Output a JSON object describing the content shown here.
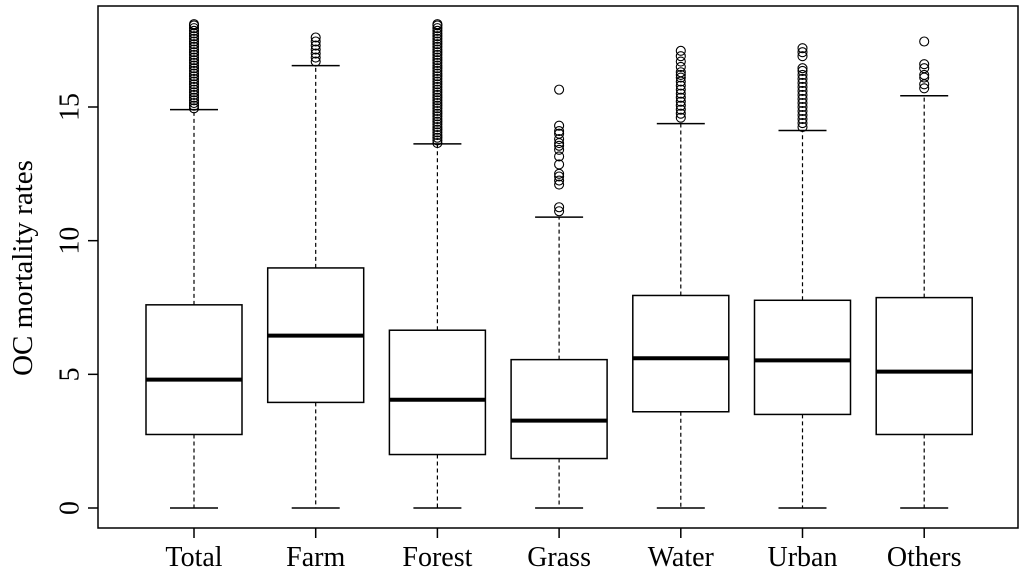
{
  "chart_data": {
    "type": "boxplot",
    "title": "",
    "xlabel": "",
    "ylabel": "OC mortality rates",
    "ylim": [
      0,
      18
    ],
    "yticks": [
      0,
      5,
      10,
      15
    ],
    "grid": false,
    "categories": [
      "Total",
      "Farm",
      "Forest",
      "Grass",
      "Water",
      "Urban",
      "Others"
    ],
    "boxes": [
      {
        "category": "Total",
        "whisker_low": 0,
        "q1": 2.75,
        "median": 4.8,
        "q3": 7.6,
        "whisker_high": 14.9,
        "outliers": [
          14.95,
          15.05,
          15.15,
          15.25,
          15.35,
          15.45,
          15.55,
          15.65,
          15.75,
          15.85,
          15.95,
          16.05,
          16.15,
          16.25,
          16.35,
          16.45,
          16.55,
          16.65,
          16.75,
          16.85,
          16.95,
          17.05,
          17.15,
          17.25,
          17.35,
          17.45,
          17.55,
          17.65,
          17.75,
          17.85,
          17.95,
          18.05,
          18.1
        ]
      },
      {
        "category": "Farm",
        "whisker_low": 0,
        "q1": 3.95,
        "median": 6.45,
        "q3": 8.98,
        "whisker_high": 16.55,
        "outliers": [
          16.7,
          16.85,
          17.0,
          17.15,
          17.3,
          17.45,
          17.6
        ]
      },
      {
        "category": "Forest",
        "whisker_low": 0,
        "q1": 2.0,
        "median": 4.05,
        "q3": 6.65,
        "whisker_high": 13.62,
        "outliers": [
          13.65,
          13.75,
          13.85,
          13.95,
          14.05,
          14.15,
          14.25,
          14.35,
          14.45,
          14.55,
          14.65,
          14.75,
          14.85,
          14.95,
          15.05,
          15.15,
          15.25,
          15.35,
          15.45,
          15.55,
          15.65,
          15.75,
          15.85,
          15.95,
          16.05,
          16.15,
          16.25,
          16.35,
          16.45,
          16.55,
          16.65,
          16.75,
          16.85,
          16.95,
          17.05,
          17.15,
          17.25,
          17.35,
          17.45,
          17.55,
          17.65,
          17.75,
          17.85,
          17.95,
          18.05,
          18.1
        ]
      },
      {
        "category": "Grass",
        "whisker_low": 0,
        "q1": 1.85,
        "median": 3.27,
        "q3": 5.55,
        "whisker_high": 10.88,
        "outliers": [
          11.1,
          11.25,
          12.1,
          12.25,
          12.4,
          12.5,
          12.85,
          13.15,
          13.4,
          13.55,
          13.65,
          13.8,
          14.0,
          14.1,
          14.3,
          15.65
        ]
      },
      {
        "category": "Water",
        "whisker_low": 0,
        "q1": 3.6,
        "median": 5.6,
        "q3": 7.95,
        "whisker_high": 14.38,
        "outliers": [
          14.6,
          14.75,
          14.9,
          15.05,
          15.2,
          15.35,
          15.5,
          15.65,
          15.8,
          15.95,
          16.1,
          16.2,
          16.3,
          16.5,
          16.7,
          16.9,
          17.1
        ]
      },
      {
        "category": "Urban",
        "whisker_low": 0,
        "q1": 3.5,
        "median": 5.52,
        "q3": 7.77,
        "whisker_high": 14.12,
        "outliers": [
          14.25,
          14.4,
          14.55,
          14.7,
          14.85,
          15.0,
          15.15,
          15.3,
          15.45,
          15.6,
          15.75,
          15.9,
          16.05,
          16.2,
          16.35,
          16.45,
          16.9,
          17.05,
          17.2
        ]
      },
      {
        "category": "Others",
        "whisker_low": 0,
        "q1": 2.75,
        "median": 5.1,
        "q3": 7.87,
        "whisker_high": 15.42,
        "outliers": [
          15.7,
          15.85,
          16.1,
          16.2,
          16.45,
          16.6,
          17.45
        ]
      }
    ]
  }
}
